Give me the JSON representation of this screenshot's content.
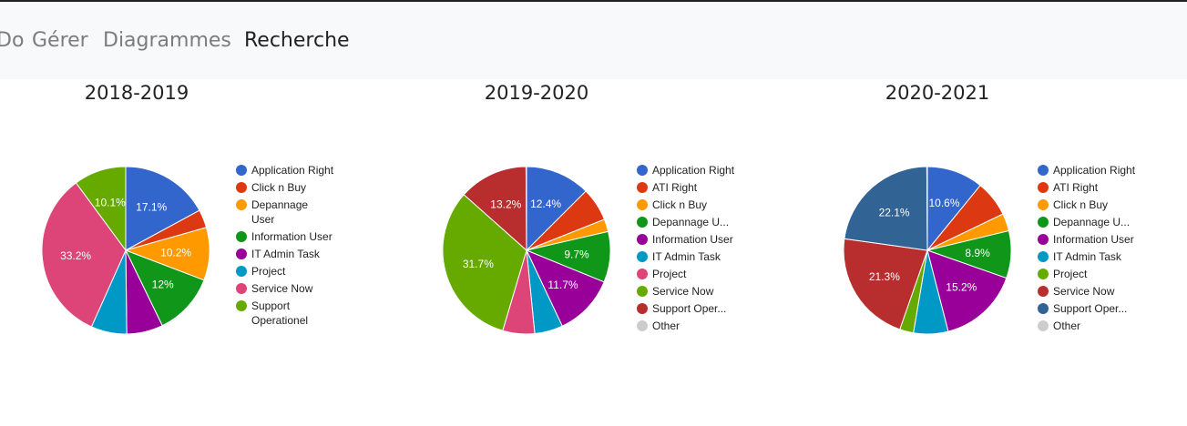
{
  "navbar": {
    "items": [
      {
        "label": "Do",
        "active": false
      },
      {
        "label": "Gérer",
        "active": false
      },
      {
        "label": "Diagrammes",
        "active": false
      },
      {
        "label": "Recherche",
        "active": true
      }
    ]
  },
  "chart_data": [
    {
      "type": "pie",
      "title": "2018-2019",
      "slices": [
        {
          "label": "Application Right",
          "value": 17.1,
          "color": "#3366cc",
          "data_label": "17.1%"
        },
        {
          "label": "Click n Buy",
          "value": 3.5,
          "color": "#dc3912",
          "data_label": ""
        },
        {
          "label": "Depannage User",
          "value": 10.2,
          "color": "#ff9900",
          "data_label": "10.2%"
        },
        {
          "label": "Information User",
          "value": 12,
          "color": "#109618",
          "data_label": "12%"
        },
        {
          "label": "IT Admin Task",
          "value": 7.0,
          "color": "#990099",
          "data_label": ""
        },
        {
          "label": "Project",
          "value": 6.9,
          "color": "#0099c6",
          "data_label": ""
        },
        {
          "label": "Service Now",
          "value": 33.2,
          "color": "#dd4477",
          "data_label": "33.2%"
        },
        {
          "label": "Support Operationel",
          "value": 10.1,
          "color": "#66aa00",
          "data_label": "10.1%"
        }
      ],
      "legend": [
        {
          "lines": [
            "Application Right"
          ],
          "color": "#3366cc"
        },
        {
          "lines": [
            "Click n Buy"
          ],
          "color": "#dc3912"
        },
        {
          "lines": [
            "Depannage",
            "User"
          ],
          "color": "#ff9900"
        },
        {
          "lines": [
            "Information User"
          ],
          "color": "#109618"
        },
        {
          "lines": [
            "IT Admin Task"
          ],
          "color": "#990099"
        },
        {
          "lines": [
            "Project"
          ],
          "color": "#0099c6"
        },
        {
          "lines": [
            "Service Now"
          ],
          "color": "#dd4477"
        },
        {
          "lines": [
            "Support",
            "Operationel"
          ],
          "color": "#66aa00"
        }
      ]
    },
    {
      "type": "pie",
      "title": "2019-2020",
      "slices": [
        {
          "label": "Application Right",
          "value": 12.4,
          "color": "#3366cc",
          "data_label": "12.4%"
        },
        {
          "label": "ATI Right",
          "value": 6.4,
          "color": "#dc3912",
          "data_label": ""
        },
        {
          "label": "Click n Buy",
          "value": 2.4,
          "color": "#ff9900",
          "data_label": ""
        },
        {
          "label": "Depannage User",
          "value": 9.7,
          "color": "#109618",
          "data_label": "9.7%"
        },
        {
          "label": "Information User",
          "value": 11.7,
          "color": "#990099",
          "data_label": "11.7%"
        },
        {
          "label": "IT Admin Task",
          "value": 5.4,
          "color": "#0099c6",
          "data_label": ""
        },
        {
          "label": "Project",
          "value": 6.1,
          "color": "#dd4477",
          "data_label": ""
        },
        {
          "label": "Service Now",
          "value": 31.7,
          "color": "#66aa00",
          "data_label": "31.7%"
        },
        {
          "label": "Support Operationel",
          "value": 13.2,
          "color": "#b82e2e",
          "data_label": "13.2%"
        },
        {
          "label": "Other",
          "value": 0.1,
          "color": "#cccccc",
          "data_label": ""
        }
      ],
      "legend": [
        {
          "lines": [
            "Application Right"
          ],
          "color": "#3366cc"
        },
        {
          "lines": [
            "ATI Right"
          ],
          "color": "#dc3912"
        },
        {
          "lines": [
            "Click n Buy"
          ],
          "color": "#ff9900"
        },
        {
          "lines": [
            "Depannage U..."
          ],
          "color": "#109618"
        },
        {
          "lines": [
            "Information User"
          ],
          "color": "#990099"
        },
        {
          "lines": [
            "IT Admin Task"
          ],
          "color": "#0099c6"
        },
        {
          "lines": [
            "Project"
          ],
          "color": "#dd4477"
        },
        {
          "lines": [
            "Service Now"
          ],
          "color": "#66aa00"
        },
        {
          "lines": [
            "Support Oper..."
          ],
          "color": "#b82e2e"
        },
        {
          "lines": [
            "Other"
          ],
          "color": "#cccccc"
        }
      ]
    },
    {
      "type": "pie",
      "title": "2020-2021",
      "slices": [
        {
          "label": "Application Right",
          "value": 10.6,
          "color": "#3366cc",
          "data_label": "10.6%"
        },
        {
          "label": "ATI Right",
          "value": 6.8,
          "color": "#dc3912",
          "data_label": ""
        },
        {
          "label": "Click n Buy",
          "value": 3.3,
          "color": "#ff9900",
          "data_label": ""
        },
        {
          "label": "Depannage User",
          "value": 8.9,
          "color": "#109618",
          "data_label": "8.9%"
        },
        {
          "label": "Information User",
          "value": 15.2,
          "color": "#990099",
          "data_label": "15.2%"
        },
        {
          "label": "IT Admin Task",
          "value": 6.5,
          "color": "#0099c6",
          "data_label": ""
        },
        {
          "label": "Project",
          "value": 2.6,
          "color": "#66aa00",
          "data_label": ""
        },
        {
          "label": "Service Now",
          "value": 21.3,
          "color": "#b82e2e",
          "data_label": "21.3%"
        },
        {
          "label": "Support Operationel",
          "value": 22.1,
          "color": "#316395",
          "data_label": "22.1%"
        },
        {
          "label": "Other",
          "value": 0.1,
          "color": "#cccccc",
          "data_label": ""
        }
      ],
      "legend": [
        {
          "lines": [
            "Application Right"
          ],
          "color": "#3366cc"
        },
        {
          "lines": [
            "ATI Right"
          ],
          "color": "#dc3912"
        },
        {
          "lines": [
            "Click n Buy"
          ],
          "color": "#ff9900"
        },
        {
          "lines": [
            "Depannage U..."
          ],
          "color": "#109618"
        },
        {
          "lines": [
            "Information User"
          ],
          "color": "#990099"
        },
        {
          "lines": [
            "IT Admin Task"
          ],
          "color": "#0099c6"
        },
        {
          "lines": [
            "Project"
          ],
          "color": "#66aa00"
        },
        {
          "lines": [
            "Service Now"
          ],
          "color": "#b82e2e"
        },
        {
          "lines": [
            "Support Oper..."
          ],
          "color": "#316395"
        },
        {
          "lines": [
            "Other"
          ],
          "color": "#cccccc"
        }
      ]
    }
  ]
}
